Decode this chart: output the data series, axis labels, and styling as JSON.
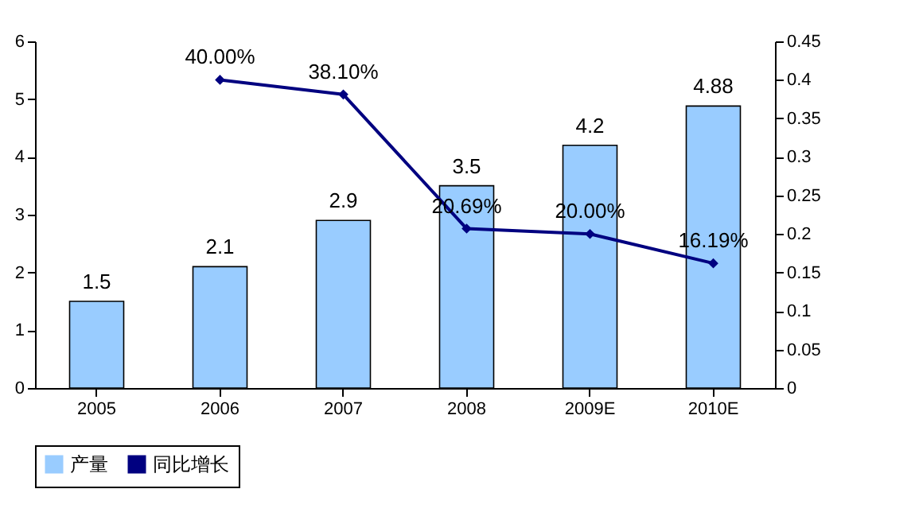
{
  "chart_data": {
    "type": "bar",
    "categories": [
      "2005",
      "2006",
      "2007",
      "2008",
      "2009E",
      "2010E"
    ],
    "series": [
      {
        "name": "产量",
        "color": "#99ccff",
        "values": [
          1.5,
          2.1,
          2.9,
          3.5,
          4.2,
          4.88
        ],
        "value_labels": [
          "1.5",
          "2.1",
          "2.9",
          "3.5",
          "4.2",
          "4.88"
        ]
      },
      {
        "name": "同比增长",
        "type": "line",
        "axis": "y2",
        "color": "#000080",
        "marker": "diamond",
        "values": [
          null,
          0.4,
          0.381,
          0.2069,
          0.2,
          0.1619
        ],
        "value_labels": [
          null,
          "40.00%",
          "38.10%",
          "20.69%",
          "20.00%",
          "16.19%"
        ]
      }
    ],
    "ylim": [
      0,
      6
    ],
    "yticks": [
      0,
      1,
      2,
      3,
      4,
      5,
      6
    ],
    "y2lim": [
      0,
      0.45
    ],
    "y2ticks": [
      0,
      0.05,
      0.1,
      0.15,
      0.2,
      0.25,
      0.3,
      0.35,
      0.4,
      0.45
    ],
    "legend": "bottom",
    "grid": false
  }
}
